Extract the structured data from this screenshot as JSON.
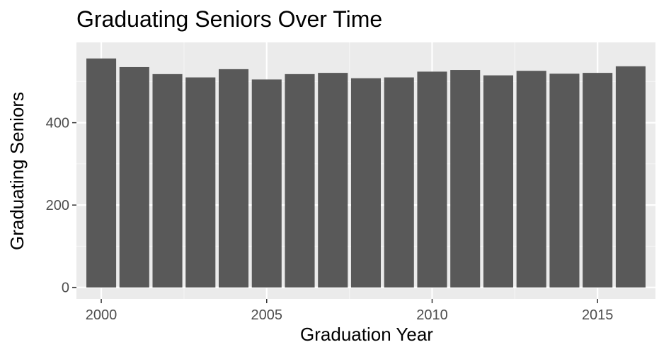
{
  "chart_data": {
    "type": "bar",
    "title": "Graduating Seniors Over Time",
    "xlabel": "Graduation Year",
    "ylabel": "Graduating Seniors",
    "x": [
      2000,
      2001,
      2002,
      2003,
      2004,
      2005,
      2006,
      2007,
      2008,
      2009,
      2010,
      2011,
      2012,
      2013,
      2014,
      2015,
      2016
    ],
    "values": [
      556,
      535,
      518,
      510,
      530,
      505,
      518,
      521,
      508,
      510,
      524,
      528,
      515,
      526,
      519,
      521,
      537
    ],
    "xlim": [
      1999.25,
      2016.75
    ],
    "ylim": [
      -28,
      595
    ],
    "x_ticks": [
      2000,
      2005,
      2010,
      2015
    ],
    "x_tick_labels": [
      "2000",
      "2005",
      "2010",
      "2015"
    ],
    "y_ticks": [
      0,
      200,
      400
    ],
    "y_tick_labels": [
      "0",
      "200",
      "400"
    ],
    "grid": true,
    "colors": {
      "bar": "#595959",
      "panel_background": "#ebebeb",
      "grid_major": "#ffffff",
      "grid_minor": "#f5f5f5",
      "tick": "#333333",
      "tick_label": "#4d4d4d"
    }
  }
}
